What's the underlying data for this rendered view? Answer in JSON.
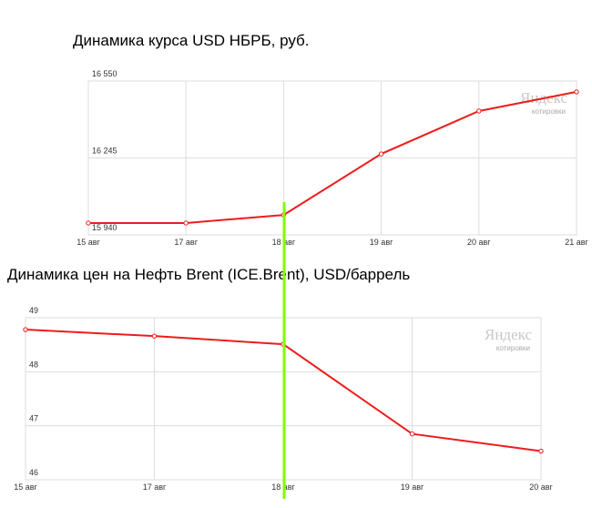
{
  "chart_data": [
    {
      "type": "line",
      "title": "Динамика курса USD НБРБ, руб.",
      "categories": [
        "15 авг",
        "17 авг",
        "18 авг",
        "19 авг",
        "20 авг",
        "21 авг"
      ],
      "series": [
        {
          "color": "#ee1c1c",
          "values": [
            15987,
            15987,
            16019,
            16261,
            16431,
            16507
          ]
        }
      ],
      "ylim": [
        15940,
        16550
      ],
      "yticks": [
        {
          "value": 15940,
          "label": "15 940"
        },
        {
          "value": 16245,
          "label": "16 245"
        },
        {
          "value": 16550,
          "label": "16 550"
        }
      ],
      "grid": true,
      "watermark": {
        "title": "Яндекс",
        "subtitle": "котировки"
      }
    },
    {
      "type": "line",
      "title": "Динамика цен на Нефть Brent (ICE.Brent), USD/баррель",
      "categories": [
        "15 авг",
        "17 авг",
        "18 авг",
        "19 авг",
        "20 авг"
      ],
      "series": [
        {
          "color": "#ee1c1c",
          "values": [
            48.78,
            48.66,
            48.51,
            46.85,
            46.53
          ]
        }
      ],
      "ylim": [
        46,
        49
      ],
      "yticks": [
        46,
        47,
        48,
        49
      ],
      "grid": true,
      "watermark": {
        "title": "Яндекс",
        "subtitle": "котировки"
      }
    }
  ]
}
